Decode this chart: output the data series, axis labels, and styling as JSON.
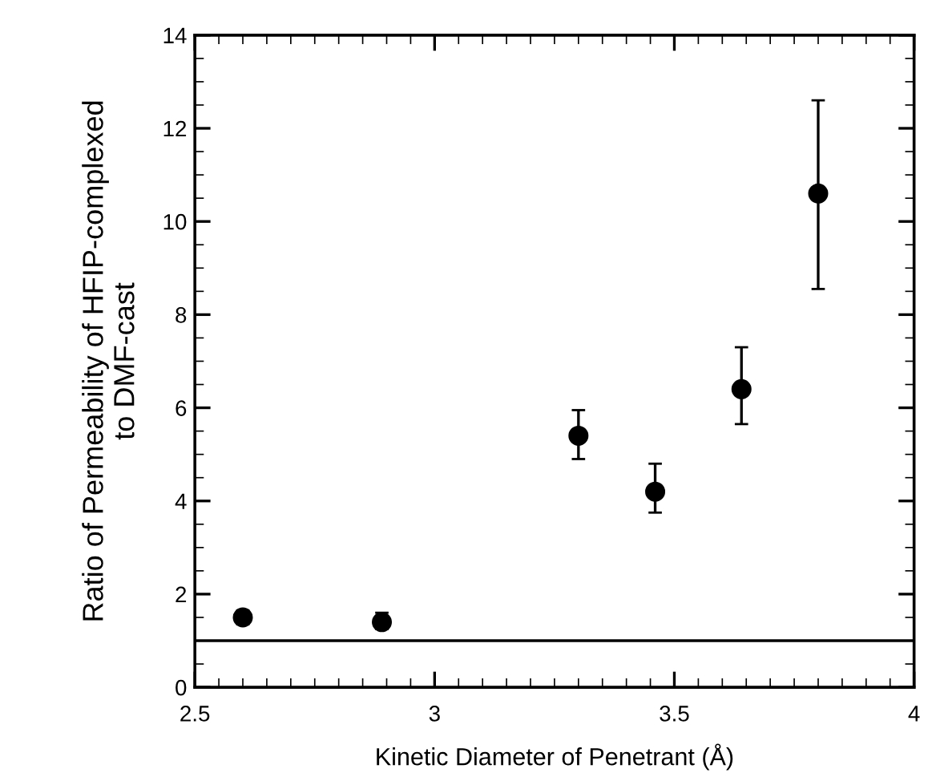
{
  "chart_data": {
    "type": "scatter",
    "xlabel": "Kinetic Diameter of Penetrant (Å)",
    "ylabel": "Ratio of Permeability of HFIP-complexed\nto DMF-cast",
    "series": [
      {
        "color": "#000000",
        "x": [
          2.6,
          2.89,
          3.3,
          3.46,
          3.64,
          3.8
        ],
        "values": [
          1.5,
          1.4,
          5.4,
          4.2,
          6.4,
          10.6
        ],
        "errors": [
          [
            1.35,
            1.65
          ],
          [
            1.25,
            1.6
          ],
          [
            4.9,
            5.95
          ],
          [
            3.75,
            4.8
          ],
          [
            5.65,
            7.3
          ],
          [
            8.55,
            12.6
          ]
        ]
      }
    ],
    "marker": "circle",
    "xlim": [
      2.5,
      4
    ],
    "ylim": [
      0,
      14
    ],
    "xticks": [
      2.5,
      3,
      3.5,
      4
    ],
    "yticks": [
      0,
      2,
      4,
      6,
      8,
      10,
      12,
      14
    ],
    "ref_lines": [
      {
        "axis": "y",
        "value": 1,
        "color": "#000000",
        "line_style": "solid"
      }
    ],
    "grid": false,
    "legend": false
  }
}
